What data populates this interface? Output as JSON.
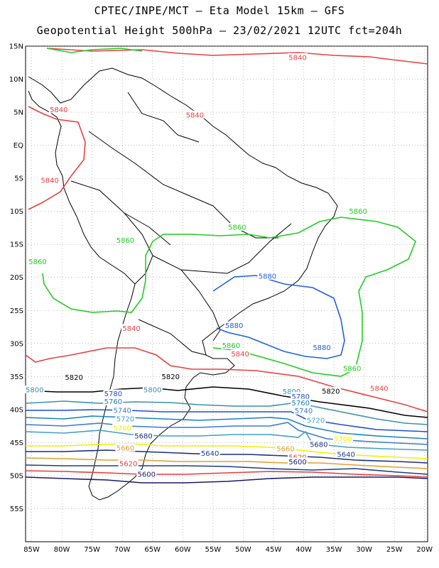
{
  "header": {
    "line1": "CPTEC/INPE/MCT –  Eta Model 15km – GFS",
    "line2": "Geopotential Height 500hPa – 23/02/2021 12UTC fct=204h"
  },
  "axes": {
    "lat_labels": [
      "15N",
      "10N",
      "5N",
      "EQ",
      "5S",
      "10S",
      "15S",
      "20S",
      "25S",
      "30S",
      "35S",
      "40S",
      "45S",
      "50S",
      "55S"
    ],
    "lon_labels": [
      "85W",
      "80W",
      "75W",
      "70W",
      "65W",
      "60W",
      "55W",
      "50W",
      "45W",
      "40W",
      "35W",
      "30W",
      "25W",
      "20W"
    ],
    "lat_range": [
      15,
      -60
    ],
    "lon_range": [
      -86,
      -19.5
    ]
  },
  "colors": {
    "5600": "#1a1a6e",
    "5620": "#e83c3c",
    "5640": "#1b3f8a",
    "5660": "#e0a030",
    "5680": "#1f2f7a",
    "5700": "#f0f000",
    "5720": "#40a0c8",
    "5740": "#3a7bd5",
    "5760": "#1a82c0",
    "5780": "#2050d0",
    "5800": "#3a8fb0",
    "5820": "#000000",
    "5840": "#e84040",
    "5860": "#22cc22",
    "5880": "#2060e0"
  },
  "contour_labels": [
    {
      "text": "5840",
      "value": 5840,
      "lon": -41,
      "lat": 13.3
    },
    {
      "text": "5840",
      "value": 5840,
      "lon": -80.5,
      "lat": 5.4
    },
    {
      "text": "5840",
      "value": 5840,
      "lon": -58,
      "lat": 4.6
    },
    {
      "text": "5840",
      "value": 5840,
      "lon": -82,
      "lat": -5.3
    },
    {
      "text": "5860",
      "value": 5860,
      "lon": -31,
      "lat": -10
    },
    {
      "text": "5860",
      "value": 5860,
      "lon": -51,
      "lat": -12.4
    },
    {
      "text": "5860",
      "value": 5860,
      "lon": -69.5,
      "lat": -14.4
    },
    {
      "text": "5860",
      "value": 5860,
      "lon": -84,
      "lat": -17.6
    },
    {
      "text": "5880",
      "value": 5880,
      "lon": -46,
      "lat": -19.8
    },
    {
      "text": "5880",
      "value": 5880,
      "lon": -51.5,
      "lat": -27.3
    },
    {
      "text": "5880",
      "value": 5880,
      "lon": -37,
      "lat": -30.6
    },
    {
      "text": "5840",
      "value": 5840,
      "lon": -68.5,
      "lat": -27.7
    },
    {
      "text": "5860",
      "value": 5860,
      "lon": -52,
      "lat": -30.3
    },
    {
      "text": "5840",
      "value": 5840,
      "lon": -50.5,
      "lat": -31.6
    },
    {
      "text": "5860",
      "value": 5860,
      "lon": -32,
      "lat": -33.8
    },
    {
      "text": "5840",
      "value": 5840,
      "lon": -27.5,
      "lat": -36.8
    },
    {
      "text": "5820",
      "value": 5820,
      "lon": -78,
      "lat": -35.1
    },
    {
      "text": "5820",
      "value": 5820,
      "lon": -62,
      "lat": -35
    },
    {
      "text": "5820",
      "value": 5820,
      "lon": -35.5,
      "lat": -37.2
    },
    {
      "text": "5800",
      "value": 5800,
      "lon": -84.5,
      "lat": -37
    },
    {
      "text": "5800",
      "value": 5800,
      "lon": -65,
      "lat": -37
    },
    {
      "text": "5800",
      "value": 5800,
      "lon": -42,
      "lat": -37.3
    },
    {
      "text": "5780",
      "value": 5780,
      "lon": -71.5,
      "lat": -37.6
    },
    {
      "text": "5780",
      "value": 5780,
      "lon": -40.5,
      "lat": -38
    },
    {
      "text": "5760",
      "value": 5760,
      "lon": -71.5,
      "lat": -38.8
    },
    {
      "text": "5760",
      "value": 5760,
      "lon": -40.5,
      "lat": -39
    },
    {
      "text": "5740",
      "value": 5740,
      "lon": -70,
      "lat": -40.1
    },
    {
      "text": "5740",
      "value": 5740,
      "lon": -40,
      "lat": -40.2
    },
    {
      "text": "5720",
      "value": 5720,
      "lon": -69.5,
      "lat": -41.4
    },
    {
      "text": "5720",
      "value": 5720,
      "lon": -38,
      "lat": -41.6
    },
    {
      "text": "5700",
      "value": 5700,
      "lon": -70,
      "lat": -42.8
    },
    {
      "text": "5700",
      "value": 5700,
      "lon": -33.5,
      "lat": -44.4
    },
    {
      "text": "5680",
      "value": 5680,
      "lon": -66.5,
      "lat": -44
    },
    {
      "text": "5680",
      "value": 5680,
      "lon": -37.5,
      "lat": -45.3
    },
    {
      "text": "5660",
      "value": 5660,
      "lon": -69.5,
      "lat": -45.8
    },
    {
      "text": "5660",
      "value": 5660,
      "lon": -43,
      "lat": -45.9
    },
    {
      "text": "5640",
      "value": 5640,
      "lon": -55.5,
      "lat": -46.6
    },
    {
      "text": "5640",
      "value": 5640,
      "lon": -33,
      "lat": -46.8
    },
    {
      "text": "5620",
      "value": 5620,
      "lon": -69,
      "lat": -48.2
    },
    {
      "text": "5620",
      "value": 5620,
      "lon": -41,
      "lat": -47.2
    },
    {
      "text": "5600",
      "value": 5600,
      "lon": -66,
      "lat": -49.8
    },
    {
      "text": "5600",
      "value": 5600,
      "lon": -41,
      "lat": -47.9
    }
  ]
}
